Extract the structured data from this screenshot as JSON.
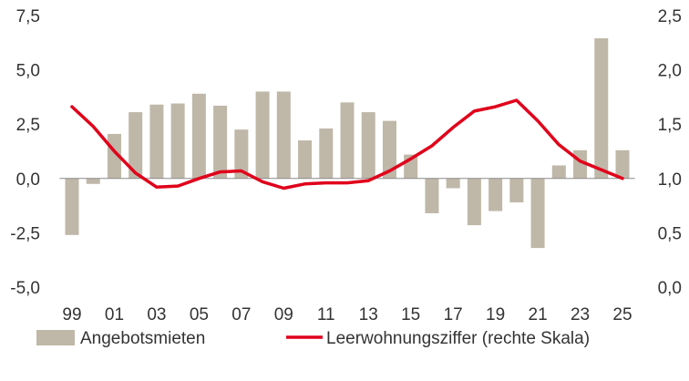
{
  "chart_data": {
    "type": "bar+line",
    "categories": [
      "99",
      "00",
      "01",
      "02",
      "03",
      "04",
      "05",
      "06",
      "07",
      "08",
      "09",
      "10",
      "11",
      "12",
      "13",
      "14",
      "15",
      "16",
      "17",
      "18",
      "19",
      "20",
      "21",
      "22",
      "23",
      "24",
      "25"
    ],
    "x_tick_labels": [
      "99",
      "",
      "01",
      "",
      "03",
      "",
      "05",
      "",
      "07",
      "",
      "09",
      "",
      "11",
      "",
      "13",
      "",
      "15",
      "",
      "17",
      "",
      "19",
      "",
      "21",
      "",
      "23",
      "",
      "25"
    ],
    "series": [
      {
        "name": "Angebotsmieten",
        "type": "bar",
        "axis": "left",
        "color": "#bfb7a8",
        "values": [
          -2.6,
          -0.25,
          2.05,
          3.05,
          3.4,
          3.45,
          3.9,
          3.35,
          2.25,
          4.0,
          4.0,
          1.75,
          2.3,
          3.5,
          3.05,
          2.65,
          1.1,
          -1.6,
          -0.45,
          -2.15,
          -1.5,
          -1.1,
          -3.2,
          0.6,
          1.3,
          6.45,
          1.3
        ]
      },
      {
        "name": "Leerwohnungsziffer (rechte Skala)",
        "type": "line",
        "axis": "right",
        "color": "#e0001b",
        "values": [
          1.66,
          1.48,
          1.25,
          1.05,
          0.92,
          0.93,
          1.0,
          1.06,
          1.07,
          0.97,
          0.91,
          0.95,
          0.96,
          0.96,
          0.98,
          1.07,
          1.18,
          1.3,
          1.47,
          1.62,
          1.66,
          1.72,
          1.53,
          1.31,
          1.16,
          1.08,
          1.0
        ]
      }
    ],
    "y_left": {
      "min": -5.0,
      "max": 7.5,
      "ticks": [
        "-5,0",
        "-2,5",
        "0,0",
        "2,5",
        "5,0",
        "7,5"
      ]
    },
    "y_right": {
      "min": 0.0,
      "max": 2.5,
      "ticks": [
        "0,0",
        "0,5",
        "1,0",
        "1,5",
        "2,0",
        "2,5"
      ]
    },
    "grid": false,
    "legend_position": "bottom"
  },
  "legend": {
    "bar_label": "Angebotsmieten",
    "line_label": "Leerwohnungsziffer (rechte Skala)"
  }
}
